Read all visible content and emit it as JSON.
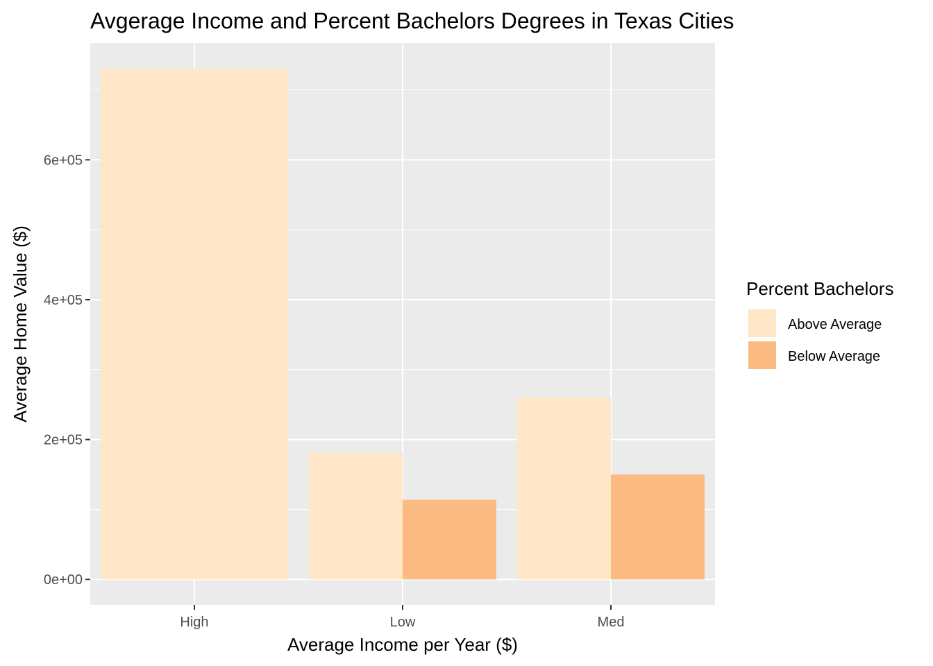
{
  "chart_data": {
    "type": "bar",
    "title": "Avgerage Income and Percent Bachelors Degrees in Texas Cities",
    "xlabel": "Average Income per Year ($)",
    "ylabel": "Average Home Value ($)",
    "categories": [
      "High",
      "Low",
      "Med"
    ],
    "series": [
      {
        "name": "Above Average",
        "color": "#FEE6C7",
        "values": [
          730000,
          181000,
          260000
        ]
      },
      {
        "name": "Below Average",
        "color": "#FBBB83",
        "values": [
          null,
          114000,
          150000
        ]
      }
    ],
    "ylim": [
      -36500,
      767000
    ],
    "yticks": [
      0,
      200000,
      400000,
      600000
    ],
    "ytick_labels": [
      "0e+00",
      "2e+05",
      "4e+05",
      "6e+05"
    ],
    "legend": {
      "title": "Percent Bachelors",
      "position": "right"
    },
    "grid": true,
    "panel_color": "#EBEBEB"
  }
}
